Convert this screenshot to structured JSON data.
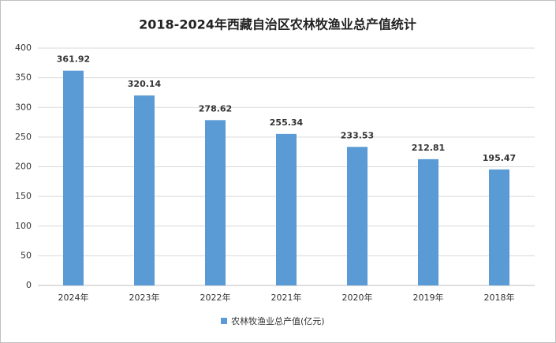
{
  "chart_data": {
    "type": "bar",
    "title": "2018-2024年西藏自治区农林牧渔业总产值统计",
    "categories": [
      "2024年",
      "2023年",
      "2022年",
      "2021年",
      "2020年",
      "2019年",
      "2018年"
    ],
    "series": [
      {
        "name": "农林牧渔业总产值(亿元)",
        "color": "#5b9bd5",
        "values": [
          361.92,
          320.14,
          278.62,
          255.34,
          233.53,
          212.81,
          195.47
        ]
      }
    ],
    "ylim": [
      0,
      400
    ],
    "yticks": [
      0,
      50,
      100,
      150,
      200,
      250,
      300,
      350,
      400
    ],
    "grid": true,
    "legend": "bottom"
  }
}
